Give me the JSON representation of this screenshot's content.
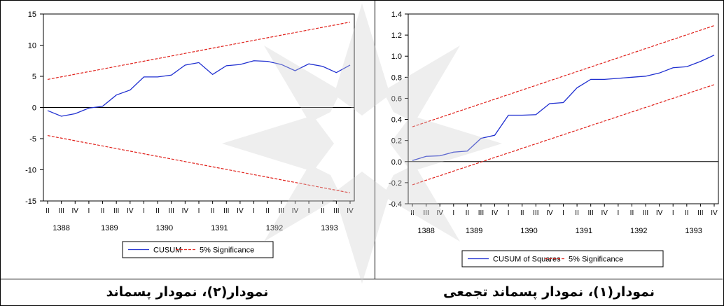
{
  "captions": {
    "left": "نمودار(۲)، نمودار پسماند",
    "right": "نمودار(۱)، نمودار پسماند تجمعی"
  },
  "chart_data": [
    {
      "type": "line",
      "panel": "left",
      "ylim": [
        -15,
        15
      ],
      "y_ticks": [
        "15",
        "10",
        "5",
        "0",
        "-5",
        "-10",
        "-15"
      ],
      "x_quarter_labels": [
        "II",
        "III",
        "IV",
        "I",
        "II",
        "III",
        "IV",
        "I",
        "II",
        "III",
        "IV",
        "I",
        "II",
        "III",
        "IV",
        "I",
        "II",
        "III",
        "IV",
        "I",
        "II",
        "III",
        "IV"
      ],
      "x_year_labels": [
        "1388",
        "1389",
        "1390",
        "1391",
        "1392",
        "1393"
      ],
      "legend": {
        "placement": "bottom-center",
        "entries": [
          "CUSUM",
          "5% Significance"
        ]
      },
      "colors": {
        "series": "#1f2fd0",
        "bounds": "#e0201a",
        "zero_line": "#000000"
      },
      "series": [
        {
          "name": "CUSUM",
          "values": [
            -0.5,
            -1.4,
            -1.0,
            -0.1,
            0.2,
            2.0,
            2.8,
            4.9,
            4.9,
            5.2,
            6.8,
            7.2,
            5.3,
            6.7,
            6.9,
            7.5,
            7.4,
            6.9,
            5.9,
            7.0,
            6.6,
            5.6,
            6.8
          ]
        },
        {
          "name": "5% Significance",
          "values": [
            4.5,
            13.7
          ]
        },
        {
          "name": "5% Significance",
          "values": [
            -4.5,
            -13.7
          ]
        }
      ]
    },
    {
      "type": "line",
      "panel": "right",
      "ylim": [
        -0.4,
        1.4
      ],
      "y_ticks": [
        "1.4",
        "1.2",
        "1.0",
        "0.8",
        "0.6",
        "0.4",
        "0.2",
        "0.0",
        "-0.2",
        "-0.4"
      ],
      "x_quarter_labels": [
        "II",
        "III",
        "IV",
        "I",
        "II",
        "III",
        "IV",
        "I",
        "II",
        "III",
        "IV",
        "I",
        "II",
        "III",
        "IV",
        "I",
        "II",
        "III",
        "IV",
        "I",
        "II",
        "III",
        "IV"
      ],
      "x_year_labels": [
        "1388",
        "1389",
        "1390",
        "1391",
        "1392",
        "1393"
      ],
      "legend": {
        "placement": "bottom-center",
        "entries": [
          "CUSUM of Squares",
          "5% Significance"
        ]
      },
      "colors": {
        "series": "#1f2fd0",
        "bounds": "#e0201a",
        "zero_line": "#000000"
      },
      "series": [
        {
          "name": "CUSUM of Squares",
          "values": [
            0.01,
            0.05,
            0.055,
            0.09,
            0.1,
            0.22,
            0.25,
            0.44,
            0.44,
            0.445,
            0.55,
            0.56,
            0.7,
            0.78,
            0.78,
            0.79,
            0.8,
            0.81,
            0.84,
            0.89,
            0.9,
            0.95,
            1.01
          ]
        },
        {
          "name": "5% Significance",
          "values": [
            0.33,
            1.29
          ]
        },
        {
          "name": "5% Significance",
          "values": [
            -0.22,
            0.73
          ]
        }
      ]
    }
  ]
}
